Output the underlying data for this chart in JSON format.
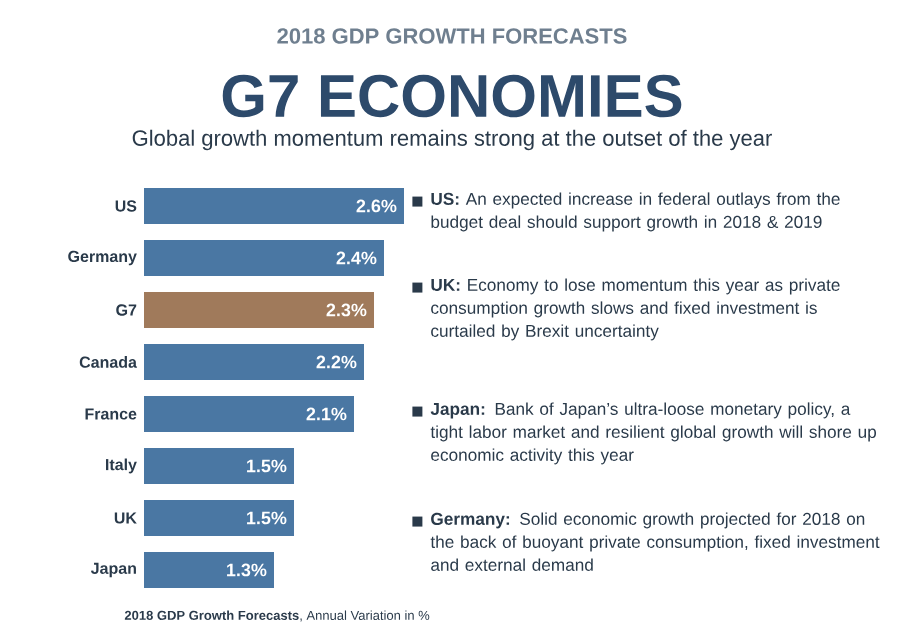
{
  "chart_data": {
    "type": "bar",
    "orientation": "horizontal",
    "title": "G7 ECONOMIES",
    "subtitle": "Global growth momentum remains strong at the outset of the year",
    "categories": [
      "US",
      "Germany",
      "G7",
      "Canada",
      "France",
      "Italy",
      "UK",
      "Japan"
    ],
    "values": [
      2.6,
      2.4,
      2.3,
      2.2,
      2.1,
      1.5,
      1.5,
      1.3
    ],
    "colors": [
      "#4a77a3",
      "#4a77a3",
      "#a07a5b",
      "#4a77a3",
      "#4a77a3",
      "#4a77a3",
      "#4a77a3",
      "#4a77a3"
    ],
    "value_labels": [
      "2.6%",
      "2.4%",
      "2.3%",
      "2.2%",
      "2.1%",
      "1.5%",
      "1.5%",
      "1.3%"
    ],
    "annotations": [
      "2018 GDP GROWTH FORECASTS",
      "**US:** An expected increase in federal outlays from the budget deal should support growth in 2018 & 2019",
      "**UK:** Economy to lose momentum this year as private consumption growth slows and fixed investment is curtailed by Brexit uncertainty",
      "**Japan:** Bank of Japan’s ultra-loose monetary policy, a tight labor market and resilient global growth will shore up economic activity this year",
      "**Germany:** Solid economic growth projected for 2018 on the back of buoyant private consumption, fixed investment and external demand",
      "**2018 GDP Growth Forecasts**, Annual Variation in %"
    ]
  }
}
